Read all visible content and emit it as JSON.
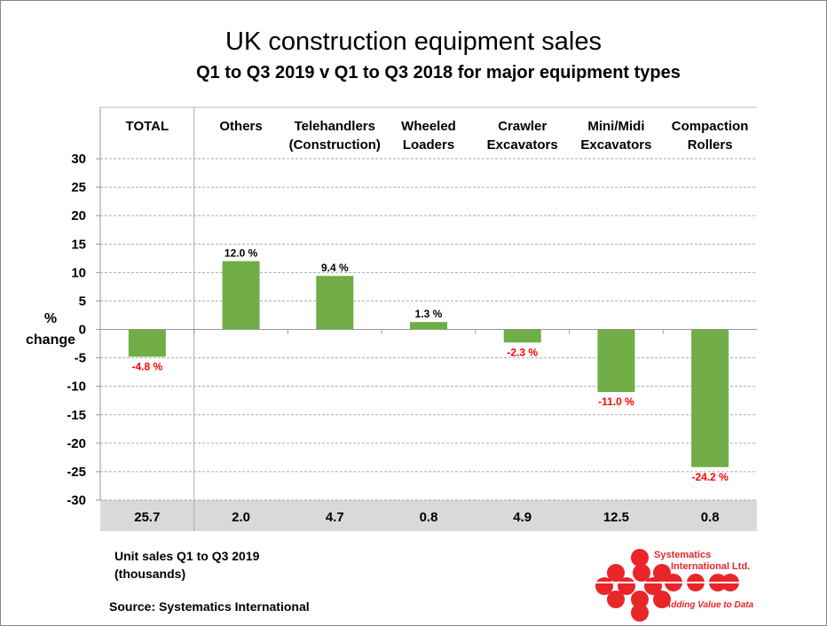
{
  "chart_data": {
    "type": "bar",
    "title": "UK construction equipment sales",
    "subtitle": "Q1 to Q3 2019  v  Q1 to Q3 2018  for major equipment types",
    "ylabel": [
      "%",
      "change"
    ],
    "ylim": [
      -30,
      30
    ],
    "yticks": [
      30,
      25,
      20,
      15,
      10,
      5,
      0,
      -5,
      -10,
      -15,
      -20,
      -25,
      -30
    ],
    "grid": true,
    "categories": [
      [
        "TOTAL"
      ],
      [
        "Others"
      ],
      [
        "Telehandlers",
        "(Construction)"
      ],
      [
        "Wheeled",
        "Loaders"
      ],
      [
        "Crawler",
        "Excavators"
      ],
      [
        "Mini/Midi",
        "Excavators"
      ],
      [
        "Compaction",
        "Rollers"
      ]
    ],
    "values": [
      -4.8,
      12.0,
      9.4,
      1.3,
      -2.3,
      -11.0,
      -24.2
    ],
    "data_labels": [
      "-4.8 %",
      "12.0 %",
      "9.4 %",
      "1.3 %",
      "-2.3 %",
      "-11.0 %",
      "-24.2 %"
    ],
    "unit_sales": [
      "25.7",
      "2.0",
      "4.7",
      "0.8",
      "4.9",
      "12.5",
      "0.8"
    ],
    "bar_color": "#70ad47",
    "positive_label_color": "#000000",
    "negative_label_color": "#ff0000"
  },
  "note": "Unit sales Q1 to Q3 2019\n(thousands)",
  "source": "Source: Systematics International",
  "logo": {
    "line1": "Systematics",
    "line2": "International Ltd.",
    "tagline": "Adding Value to Data"
  }
}
